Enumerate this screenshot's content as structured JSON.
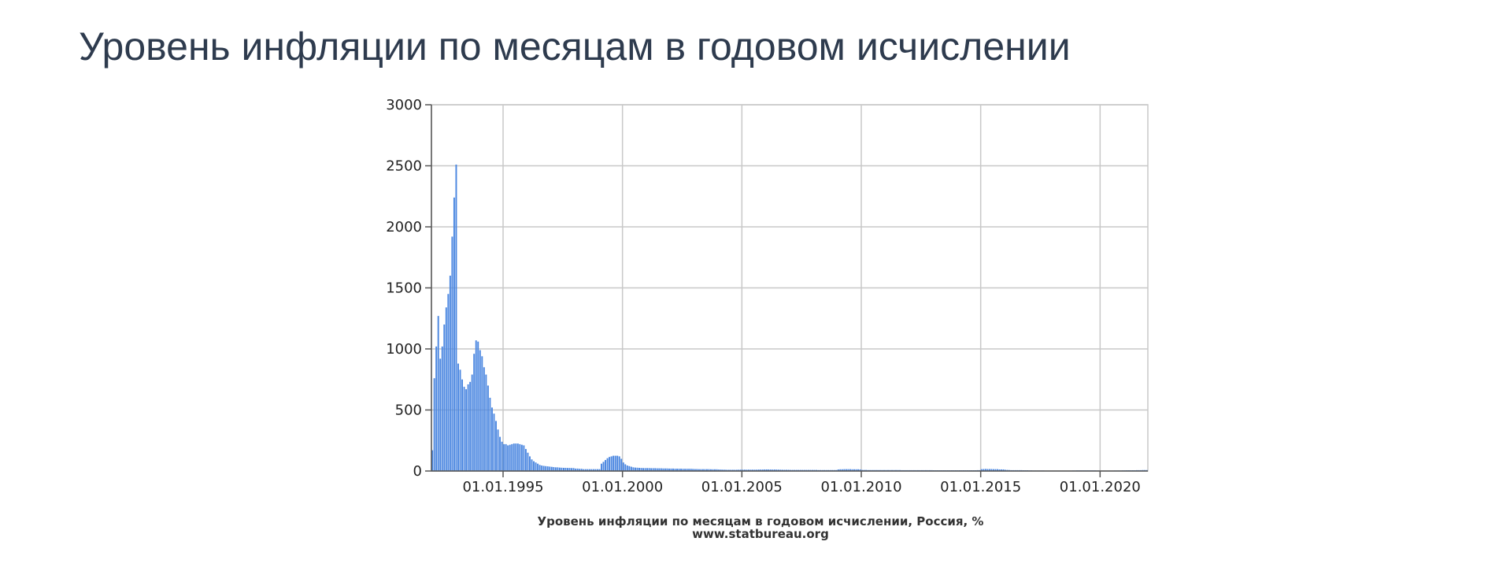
{
  "page_title": "Уровень инфляции по месяцам в годовом исчислении",
  "chart_data": {
    "type": "bar",
    "caption": "Уровень инфляции по месяцам в годовом исчислении, Россия, %",
    "source": "www.statbureau.org",
    "xlabel": "",
    "ylabel": "",
    "x_range": [
      "1992-01",
      "2021-12"
    ],
    "ylim": [
      0,
      3000
    ],
    "y_ticks": [
      0,
      500,
      1000,
      1500,
      2000,
      2500,
      3000
    ],
    "x_ticks": [
      {
        "date": "1995-01",
        "label": "01.01.1995"
      },
      {
        "date": "2000-01",
        "label": "01.01.2000"
      },
      {
        "date": "2005-01",
        "label": "01.01.2005"
      },
      {
        "date": "2010-01",
        "label": "01.01.2010"
      },
      {
        "date": "2015-01",
        "label": "01.01.2015"
      },
      {
        "date": "2020-01",
        "label": "01.01.2020"
      }
    ],
    "grid": true,
    "bar_color": "#4a86e0",
    "series": [
      {
        "values": [
          170,
          760,
          1020,
          1270,
          920,
          1020,
          1200,
          1340,
          1450,
          1600,
          1920,
          2240,
          2510,
          880,
          830,
          750,
          690,
          670,
          710,
          730,
          790,
          960,
          1070,
          1060,
          990,
          940,
          850,
          790,
          700,
          600,
          520,
          470,
          410,
          340,
          280,
          240,
          220,
          220,
          210,
          215,
          220,
          225,
          225,
          225,
          220,
          215,
          210,
          180,
          150,
          120,
          95,
          80,
          70,
          60,
          50,
          45,
          42,
          40,
          38,
          36,
          34,
          32,
          30,
          30,
          28,
          27,
          26,
          26,
          25,
          25,
          24,
          24,
          20,
          20,
          18,
          18,
          15,
          15,
          15,
          15,
          15,
          15,
          15,
          15,
          15,
          60,
          75,
          90,
          105,
          115,
          120,
          125,
          125,
          125,
          120,
          100,
          70,
          55,
          45,
          40,
          35,
          30,
          28,
          27,
          26,
          25,
          24,
          24,
          24,
          24,
          23,
          23,
          23,
          22,
          22,
          22,
          21,
          21,
          21,
          20,
          20,
          20,
          19,
          19,
          19,
          19,
          18,
          18,
          18,
          18,
          18,
          17,
          16,
          16,
          15,
          15,
          15,
          15,
          15,
          15,
          14,
          14,
          14,
          14,
          12,
          12,
          11,
          11,
          10,
          10,
          10,
          10,
          10,
          10,
          11,
          11,
          11,
          11,
          11,
          11,
          11,
          11,
          11,
          11,
          12,
          12,
          12,
          13,
          13,
          13,
          12,
          12,
          12,
          12,
          11,
          11,
          10,
          10,
          10,
          10,
          9,
          9,
          9,
          9,
          9,
          9,
          9,
          9,
          9,
          9,
          9,
          9,
          9,
          9,
          8,
          8,
          8,
          8,
          8,
          8,
          8,
          8,
          8,
          8,
          13,
          14,
          14,
          15,
          15,
          15,
          15,
          14,
          14,
          14,
          14,
          13,
          9,
          9,
          9,
          8,
          8,
          8,
          8,
          8,
          8,
          8,
          8,
          8,
          8,
          8,
          8,
          8,
          8,
          8,
          8,
          8,
          7,
          7,
          7,
          7,
          7,
          7,
          7,
          7,
          7,
          7,
          7,
          7,
          7,
          7,
          7,
          7,
          6,
          6,
          6,
          6,
          6,
          6,
          6,
          6,
          6,
          6,
          6,
          6,
          6,
          6,
          6,
          6,
          6,
          6,
          6,
          6,
          6,
          6,
          7,
          7,
          15,
          16,
          17,
          16,
          16,
          16,
          15,
          15,
          15,
          13,
          13,
          13,
          10,
          9,
          8,
          7,
          7,
          7,
          7,
          7,
          7,
          6,
          6,
          6,
          5,
          5,
          4,
          4,
          4,
          4,
          4,
          4,
          3,
          3,
          3,
          3,
          3,
          3,
          3,
          3,
          3,
          3,
          3,
          3,
          3,
          3,
          4,
          4,
          5,
          5,
          5,
          5,
          5,
          5,
          5,
          5,
          5,
          5,
          4,
          4,
          3,
          2,
          3,
          3,
          3,
          3,
          3,
          4,
          4,
          4,
          4,
          5,
          5,
          6,
          6,
          6,
          6,
          6,
          7,
          7,
          7,
          8,
          8,
          8
        ]
      }
    ]
  }
}
